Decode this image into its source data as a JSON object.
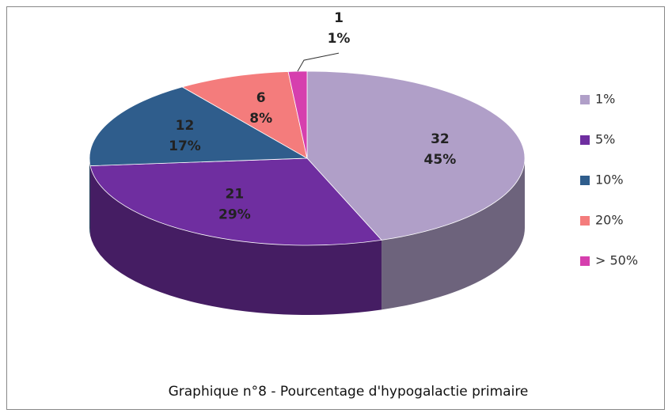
{
  "chart_data": {
    "type": "pie3d",
    "title": "Graphique n°8 - Pourcentage d'hypogalactie primaire",
    "categories": [
      "1%",
      "5%",
      "10%",
      "20%",
      "> 50%"
    ],
    "values": [
      32,
      21,
      12,
      6,
      1
    ],
    "percent_labels": [
      "45%",
      "29%",
      "17%",
      "8%",
      "1%"
    ],
    "colors": [
      "#b09fc8",
      "#6f2ea0",
      "#2f5d8c",
      "#f47c7c",
      "#d63fae"
    ],
    "legend": "right"
  }
}
